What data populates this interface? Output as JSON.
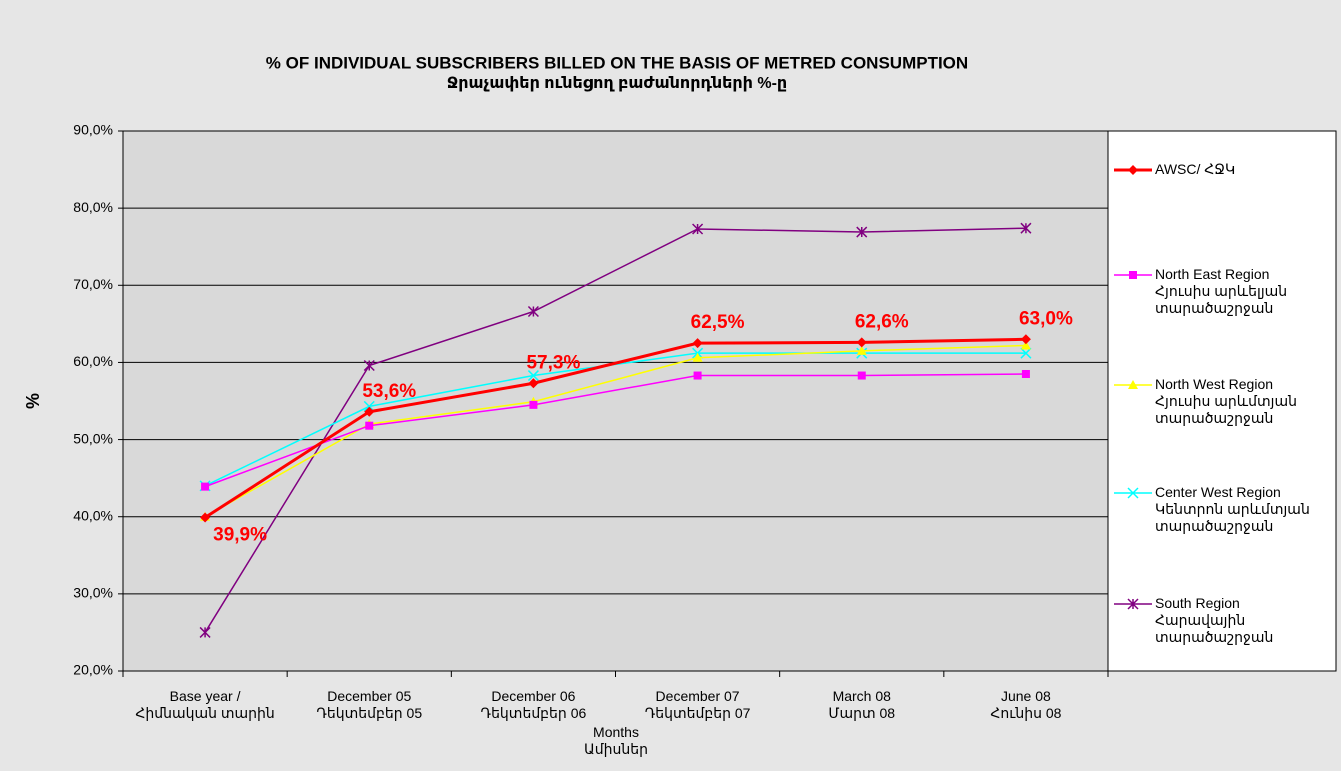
{
  "chart_data": {
    "type": "line",
    "title": "% OF INDIVIDUAL SUBSCRIBERS BILLED ON THE BASIS OF METRED CONSUMPTION",
    "subtitle": "Ջրաչափեր ունեցող բաժանորդների %-ը",
    "x_label": "Months\nԱմիսներ",
    "y_label": "%",
    "categories": [
      "Base year /\nՀիմնական տարին",
      "December 05\nԴեկտեմբեր 05",
      "December 06\nԴեկտեմբեր 06",
      "December 07\nԴեկտեմբեր 07",
      "March 08\nՄարտ 08",
      "June 08\nՀունիս 08"
    ],
    "series": [
      {
        "name": "AWSC/ ՀՋԿ",
        "color": "#ff0000",
        "marker": "diamond",
        "values": [
          39.9,
          53.6,
          57.3,
          62.5,
          62.6,
          63.0
        ],
        "value_labels": [
          "39,9%",
          "53,6%",
          "57,3%",
          "62,5%",
          "62,6%",
          "63,0%"
        ]
      },
      {
        "name": "North East Region\nՀյուսիս արևելյան\nտարածաշրջան",
        "color": "#ff00ff",
        "marker": "square",
        "values": [
          43.9,
          51.8,
          54.5,
          58.3,
          58.3,
          58.5
        ]
      },
      {
        "name": "North West Region\nՀյուսիս արևմտյան\nտարածաշրջան",
        "color": "#ffff00",
        "marker": "triangle",
        "values": [
          40.0,
          52.0,
          54.9,
          60.6,
          61.5,
          62.2
        ]
      },
      {
        "name": "Center West Region\nԿենտրոն արևմտյան\nտարածաշրջան",
        "color": "#00ffff",
        "marker": "x",
        "values": [
          44.0,
          54.3,
          58.3,
          61.2,
          61.2,
          61.2
        ]
      },
      {
        "name": "South Region\nՀարավային\nտարածաշրջան",
        "color": "#800080",
        "marker": "star",
        "values": [
          25.0,
          59.6,
          66.6,
          77.3,
          76.9,
          77.4
        ]
      }
    ],
    "ylim": [
      20,
      90
    ],
    "yticks": [
      {
        "value": 20,
        "label": "20,0%"
      },
      {
        "value": 30,
        "label": "30,0%"
      },
      {
        "value": 40,
        "label": "40,0%"
      },
      {
        "value": 50,
        "label": "50,0%"
      },
      {
        "value": 60,
        "label": "60,0%"
      },
      {
        "value": 70,
        "label": "70,0%"
      },
      {
        "value": 80,
        "label": "80,0%"
      },
      {
        "value": 90,
        "label": "90,0%"
      }
    ],
    "grid": true,
    "legend": "right"
  }
}
